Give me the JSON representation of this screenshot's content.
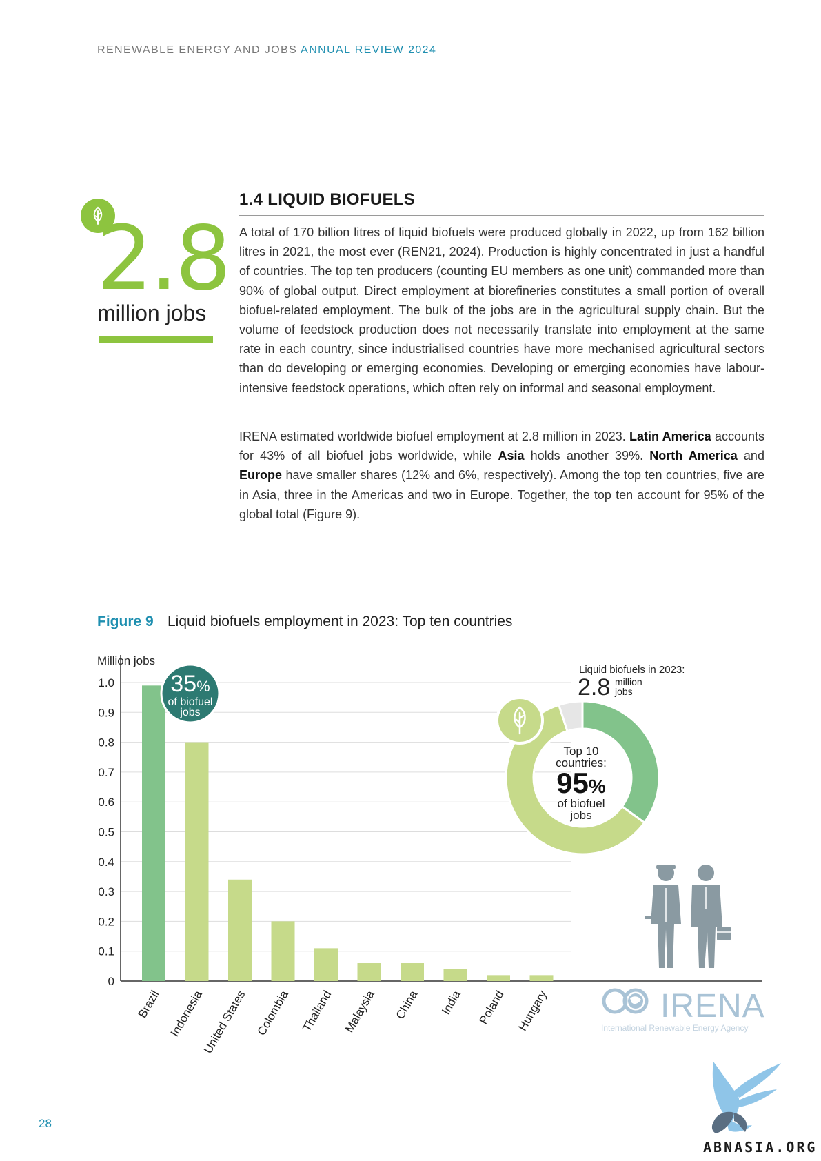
{
  "header": {
    "running_title_plain": "RENEWABLE ENERGY AND JOBS",
    "running_title_accent": "ANNUAL REVIEW 2024"
  },
  "highlight": {
    "icon": "leaf-icon",
    "number": "2.8",
    "label": "million jobs",
    "accent_color": "#8dc43f"
  },
  "section": {
    "title": "1.4 LIQUID BIOFUELS",
    "paragraph1": "A total of 170 billion litres of liquid biofuels were produced globally in 2022, up from 162 billion litres in 2021, the most ever (REN21, 2024). Production is highly concentrated in just a handful of countries. The top ten producers (counting EU members as one unit) commanded more than 90% of global output. Direct employment at biorefineries constitutes a small portion of overall biofuel-related employment. The bulk of the jobs are in the agricultural supply chain. But the volume of feedstock production does not necessarily translate into employment at the same rate in each country, since industrialised countries have more mechanised agricultural sectors than do developing or emerging economies. Developing or emerging economies have labour-intensive feedstock operations, which often rely on informal and seasonal employment.",
    "paragraph2_parts": {
      "p1": "IRENA estimated worldwide biofuel employment at 2.8 million in 2023. ",
      "b1": "Latin America",
      "p2": " accounts for 43% of all biofuel jobs worldwide, while ",
      "b2": "Asia",
      "p3": " holds another 39%. ",
      "b3": "North America",
      "p4": " and ",
      "b4": "Europe",
      "p5": " have smaller shares (12% and 6%, respectively). Among the top ten countries, five are in Asia, three in the Americas and two in Europe. Together, the top ten account for 95% of the global total (Figure 9)."
    }
  },
  "figure": {
    "label": "Figure 9",
    "title": "Liquid biofuels employment in 2023: Top ten countries"
  },
  "chart_data": [
    {
      "type": "bar",
      "ylabel": "Million jobs",
      "ylim": [
        0,
        1.0
      ],
      "yticks": [
        "0",
        "0.1",
        "0.2",
        "0.3",
        "0.4",
        "0.5",
        "0.6",
        "0.7",
        "0.8",
        "0.9",
        "1.0"
      ],
      "grid": true,
      "categories": [
        "Brazil",
        "Indonesia",
        "United States",
        "Colombia",
        "Thailand",
        "Malaysia",
        "China",
        "India",
        "Poland",
        "Hungary"
      ],
      "values": [
        0.99,
        0.8,
        0.34,
        0.2,
        0.11,
        0.06,
        0.06,
        0.04,
        0.02,
        0.02
      ],
      "colors": [
        "#82c38b",
        "#c6da8a",
        "#c6da8a",
        "#c6da8a",
        "#c6da8a",
        "#c6da8a",
        "#c6da8a",
        "#c6da8a",
        "#c6da8a",
        "#c6da8a"
      ],
      "annotation": {
        "value": "35",
        "unit": "%",
        "line1": "of biofuel",
        "line2": "jobs",
        "color": "#2d7a72"
      }
    },
    {
      "type": "pie",
      "style": "donut",
      "total_caption": "Liquid biofuels in 2023:",
      "total_value": "2.8",
      "total_unit_line1": "million",
      "total_unit_line2": "jobs",
      "slices": [
        {
          "value": 35,
          "color": "#82c38b"
        },
        {
          "value": 60,
          "color": "#c6da8a"
        },
        {
          "value": 5,
          "color": "#e6e6e6"
        }
      ],
      "center": {
        "line1": "Top 10",
        "line2": "countries:",
        "value": "95",
        "unit": "%",
        "line3": "of biofuel",
        "line4": "jobs"
      }
    }
  ],
  "illustration": {
    "icon": "workers-icon"
  },
  "logo": {
    "name": "IRENA",
    "tagline": "International Renewable Energy Agency"
  },
  "footer": {
    "page_number": "28"
  },
  "watermark": {
    "text": "ABNASIA.ORG",
    "icon": "bird-icon"
  }
}
